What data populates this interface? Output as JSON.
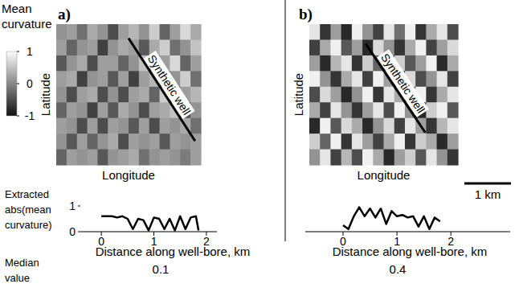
{
  "figure": {
    "colorbar": {
      "label": "Mean curvature",
      "range": [
        -1,
        1
      ],
      "ticks": [
        -1,
        0,
        1
      ]
    },
    "median_label": "Median value"
  },
  "chart_data": [
    {
      "type": "heatmap",
      "title": "a)",
      "xlabel": "Longitude",
      "ylabel": "Latitude",
      "annotation": "Synthetic well",
      "cells": [
        [
          0.1,
          0.2,
          -0.2,
          0.3,
          0.1,
          -0.5,
          0.2,
          0.4,
          0.1,
          0.6,
          -0.3,
          0.2,
          0.7,
          0.3
        ],
        [
          0.2,
          -0.3,
          0.1,
          0.2,
          -0.6,
          0.1,
          0.3,
          0.2,
          -0.4,
          0.3,
          0.6,
          -0.2,
          0.1,
          0.5
        ],
        [
          -0.4,
          0.1,
          0.3,
          -0.5,
          0.2,
          0.2,
          -0.3,
          0.1,
          0.5,
          -0.5,
          0.2,
          0.7,
          -0.3,
          0.2
        ],
        [
          0.2,
          0.3,
          -0.6,
          0.1,
          0.2,
          -0.4,
          0.2,
          -0.6,
          0.2,
          0.4,
          -0.4,
          0.1,
          0.6,
          -0.2
        ],
        [
          0.1,
          -0.5,
          0.2,
          0.3,
          -0.5,
          0.1,
          -0.5,
          0.2,
          0.3,
          -0.3,
          0.6,
          -0.5,
          0.2,
          0.4
        ],
        [
          -0.3,
          0.2,
          0.1,
          -0.6,
          0.2,
          -0.4,
          0.3,
          0.1,
          -0.5,
          0.2,
          0.3,
          0.5,
          -0.4,
          0.1
        ],
        [
          0.2,
          0.1,
          -0.5,
          0.2,
          -0.5,
          0.2,
          0.1,
          -0.4,
          0.2,
          -0.5,
          0.2,
          0.1,
          0.3,
          -0.2
        ],
        [
          0.1,
          -0.4,
          0.2,
          -0.3,
          0.1,
          0.3,
          -0.5,
          0.2,
          0.1,
          0.2,
          -0.4,
          0.2,
          0.1,
          0.2
        ],
        [
          -0.3,
          0.2,
          0.1,
          0.2,
          -0.4,
          0.1,
          0.2,
          0.3,
          -0.2,
          0.1,
          0.2,
          0.1,
          -0.1,
          0.2
        ]
      ]
    },
    {
      "type": "heatmap",
      "title": "b)",
      "xlabel": "Longitude",
      "ylabel": "Latitude",
      "annotation": "Synthetic well",
      "scale_bar": "1 km",
      "cells": [
        [
          0.8,
          -0.7,
          0.2,
          -0.8,
          0.9,
          0.1,
          -0.6,
          0.8,
          -0.2,
          0.9,
          -0.7,
          0.3,
          0.8,
          -0.5
        ],
        [
          -0.6,
          0.3,
          0.9,
          -0.4,
          0.2,
          -0.8,
          0.7,
          0.1,
          -0.7,
          0.3,
          0.9,
          -0.6,
          0.2,
          0.7
        ],
        [
          0.2,
          -0.8,
          0.4,
          0.8,
          -0.7,
          0.6,
          -0.3,
          -0.8,
          0.6,
          -0.4,
          0.2,
          0.9,
          -0.8,
          0.3
        ],
        [
          0.9,
          0.1,
          -0.7,
          0.3,
          0.8,
          -0.6,
          0.9,
          0.2,
          -0.8,
          0.7,
          -0.5,
          0.1,
          0.8,
          -0.6
        ],
        [
          -0.5,
          0.7,
          0.2,
          -0.8,
          0.1,
          0.9,
          -0.7,
          0.8,
          0.3,
          -0.6,
          0.9,
          -0.7,
          0.3,
          0.8
        ],
        [
          0.3,
          -0.6,
          0.8,
          0.1,
          -0.7,
          0.2,
          0.8,
          -0.5,
          0.9,
          0.1,
          -0.8,
          0.6,
          0.9,
          -0.4
        ],
        [
          -0.8,
          0.9,
          -0.4,
          0.7,
          0.3,
          -0.8,
          0.1,
          0.7,
          -0.6,
          0.8,
          0.2,
          -0.7,
          0.4,
          0.8
        ],
        [
          0.6,
          -0.3,
          0.9,
          -0.7,
          0.8,
          0.2,
          -0.6,
          0.3,
          0.9,
          -0.7,
          0.6,
          0.3,
          -0.8,
          0.2
        ],
        [
          0.1,
          0.8,
          -0.6,
          0.4,
          -0.5,
          0.9,
          0.3,
          -0.8,
          0.2,
          0.6,
          -0.4,
          0.8,
          0.1,
          -0.7
        ]
      ]
    },
    {
      "type": "line",
      "xlabel": "Distance along well-bore, km",
      "ylabel": "Extracted abs(mean curvature)",
      "x": [
        0,
        0.1,
        0.2,
        0.3,
        0.4,
        0.5,
        0.6,
        0.7,
        0.8,
        0.9,
        1.0,
        1.1,
        1.2,
        1.3,
        1.4,
        1.5,
        1.6,
        1.7,
        1.8,
        1.85
      ],
      "values": [
        0.6,
        0.6,
        0.6,
        0.55,
        0.6,
        0.5,
        0.1,
        0.5,
        0.45,
        0.05,
        0.55,
        0.5,
        0.1,
        0.5,
        0.05,
        0.6,
        0.1,
        0.55,
        0.6,
        0.05
      ],
      "xlim": [
        -0.4,
        2.2
      ],
      "xticks": [
        0,
        1,
        2
      ],
      "ylim": [
        0,
        1
      ],
      "yticks": [
        0,
        1
      ],
      "median": 0.1,
      "color": "#000000"
    },
    {
      "type": "line",
      "xlabel": "Distance along well-bore, km",
      "x": [
        0,
        0.1,
        0.2,
        0.3,
        0.4,
        0.5,
        0.6,
        0.7,
        0.8,
        0.9,
        1.0,
        1.1,
        1.2,
        1.3,
        1.4,
        1.5,
        1.6,
        1.7,
        1.8
      ],
      "values": [
        0.25,
        0.1,
        0.6,
        0.95,
        0.6,
        0.9,
        0.55,
        0.9,
        0.3,
        0.8,
        0.6,
        0.65,
        0.55,
        0.6,
        0.2,
        0.6,
        0.1,
        0.55,
        0.4
      ],
      "xlim": [
        -0.7,
        3.1
      ],
      "xticks": [
        0,
        1,
        2
      ],
      "ylim": [
        0,
        1
      ],
      "tick_labels": "x",
      "median": 0.4,
      "color": "#000000"
    }
  ]
}
